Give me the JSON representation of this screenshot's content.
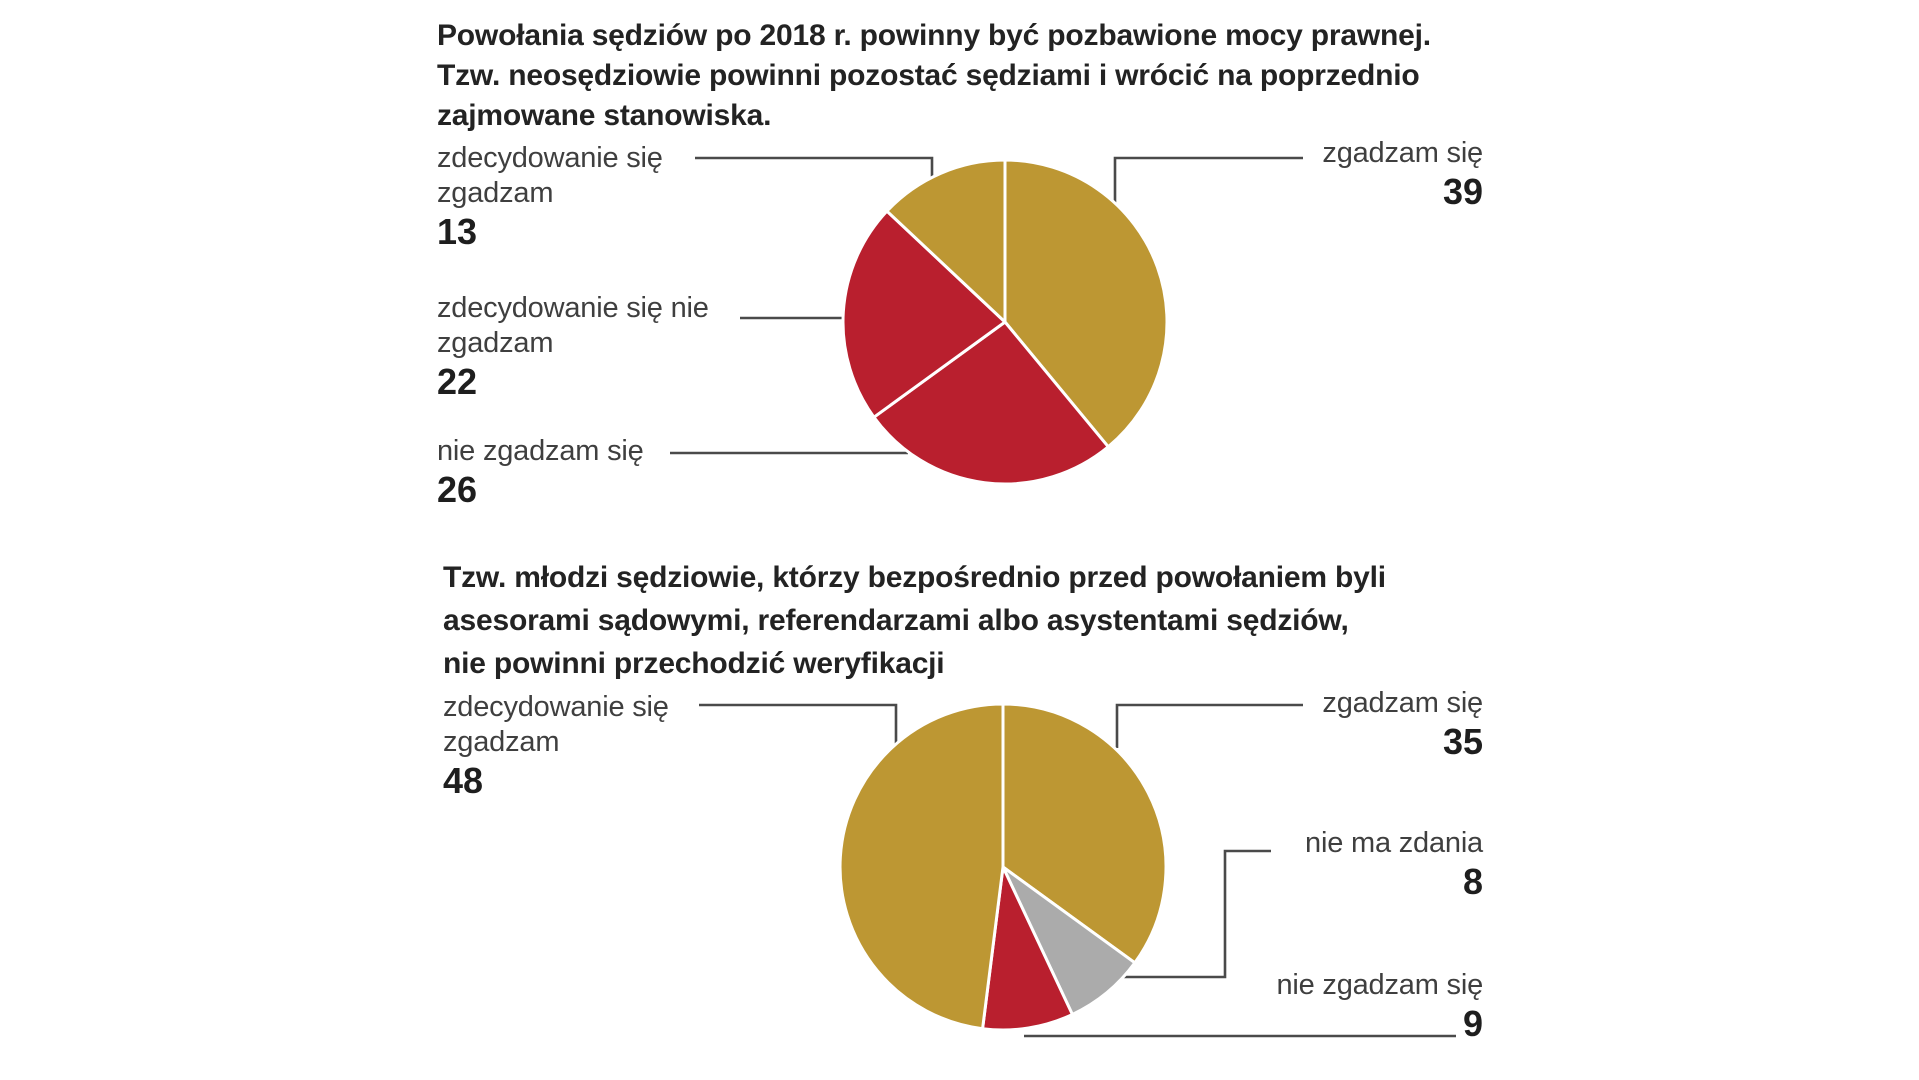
{
  "palette": {
    "gold": "#BD9733",
    "red": "#B91F2E",
    "gray": "#ABABAB",
    "leader_line": "#4a4a4a"
  },
  "chart_data": [
    {
      "type": "pie",
      "title": "Powołania sędziów po 2018 r. powinny być pozbawione mocy prawnej.\nTzw. neosędziowie powinni pozostać sędziami i wrócić na poprzednio\nzajmowane stanowiska.",
      "unit": "percent",
      "start_angle_deg": 0,
      "direction": "clockwise",
      "slices": [
        {
          "label": "zgadzam się",
          "value": 39,
          "color": "#BD9733"
        },
        {
          "label": "nie zgadzam się",
          "value": 26,
          "color": "#B91F2E"
        },
        {
          "label": "zdecydowanie się nie zgadzam",
          "value": 22,
          "color": "#B91F2E"
        },
        {
          "label": "zdecydowanie się zgadzam",
          "value": 13,
          "color": "#BD9733"
        }
      ],
      "callouts": [
        {
          "text": "zdecydowanie się\nzgadzam",
          "value": "13"
        },
        {
          "text": "zdecydowanie się nie\nzgadzam",
          "value": "22"
        },
        {
          "text": "nie zgadzam się",
          "value": "26"
        },
        {
          "text": "zgadzam się",
          "value": "39"
        }
      ]
    },
    {
      "type": "pie",
      "title": "Tzw. młodzi sędziowie, którzy bezpośrednio przed powołaniem byli\nasesorami sądowymi, referendarzami albo asystentami sędziów,\nnie powinni przechodzić weryfikacji",
      "unit": "percent",
      "start_angle_deg": 0,
      "direction": "clockwise",
      "slices": [
        {
          "label": "zgadzam się",
          "value": 35,
          "color": "#BD9733"
        },
        {
          "label": "nie ma zdania",
          "value": 8,
          "color": "#ABABAB"
        },
        {
          "label": "nie zgadzam się",
          "value": 9,
          "color": "#B91F2E"
        },
        {
          "label": "zdecydowanie się zgadzam",
          "value": 48,
          "color": "#BD9733"
        }
      ],
      "callouts": [
        {
          "text": "zdecydowanie się\nzgadzam",
          "value": "48"
        },
        {
          "text": "zgadzam się",
          "value": "35"
        },
        {
          "text": "nie ma zdania",
          "value": "8"
        },
        {
          "text": "nie zgadzam się",
          "value": "9"
        }
      ]
    }
  ]
}
